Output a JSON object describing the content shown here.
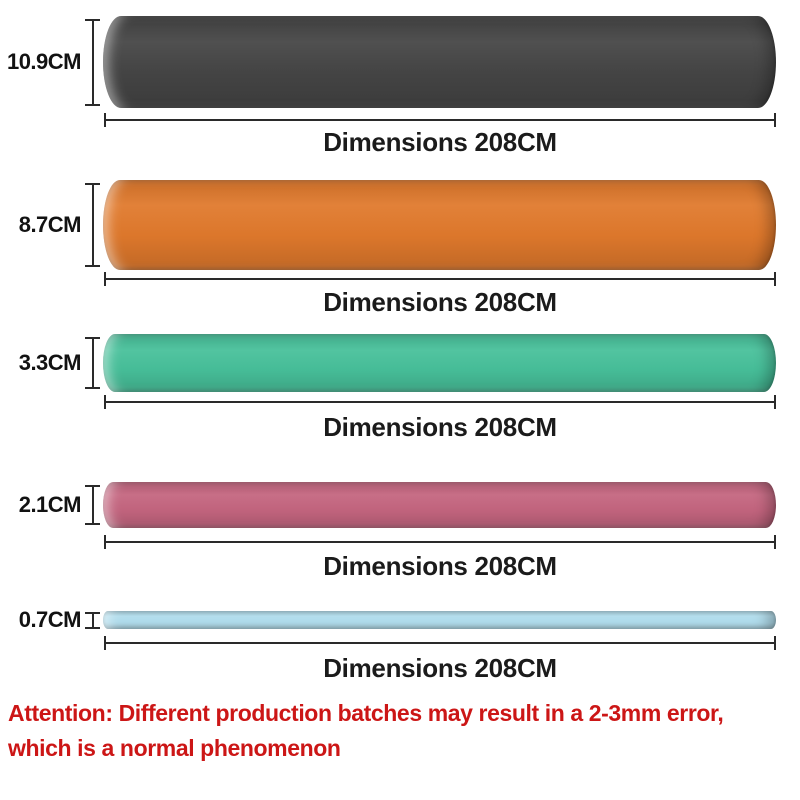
{
  "bands": [
    {
      "id": "black",
      "width_label": "10.9CM",
      "length_label": "Dimensions 208CM",
      "color": "#454545"
    },
    {
      "id": "orange",
      "width_label": "8.7CM",
      "length_label": "Dimensions 208CM",
      "color": "#E0792C"
    },
    {
      "id": "green",
      "width_label": "3.3CM",
      "length_label": "Dimensions 208CM",
      "color": "#47C09A"
    },
    {
      "id": "pink",
      "width_label": "2.1CM",
      "length_label": "Dimensions 208CM",
      "color": "#C4657F"
    },
    {
      "id": "blue",
      "width_label": "0.7CM",
      "length_label": "Dimensions 208CM",
      "color": "#B3E0F0"
    }
  ],
  "attention": {
    "line1": "Attention: Different production batches may result in a 2-3mm error,",
    "line2": "which is a normal phenomenon",
    "color": "#CC1616"
  }
}
